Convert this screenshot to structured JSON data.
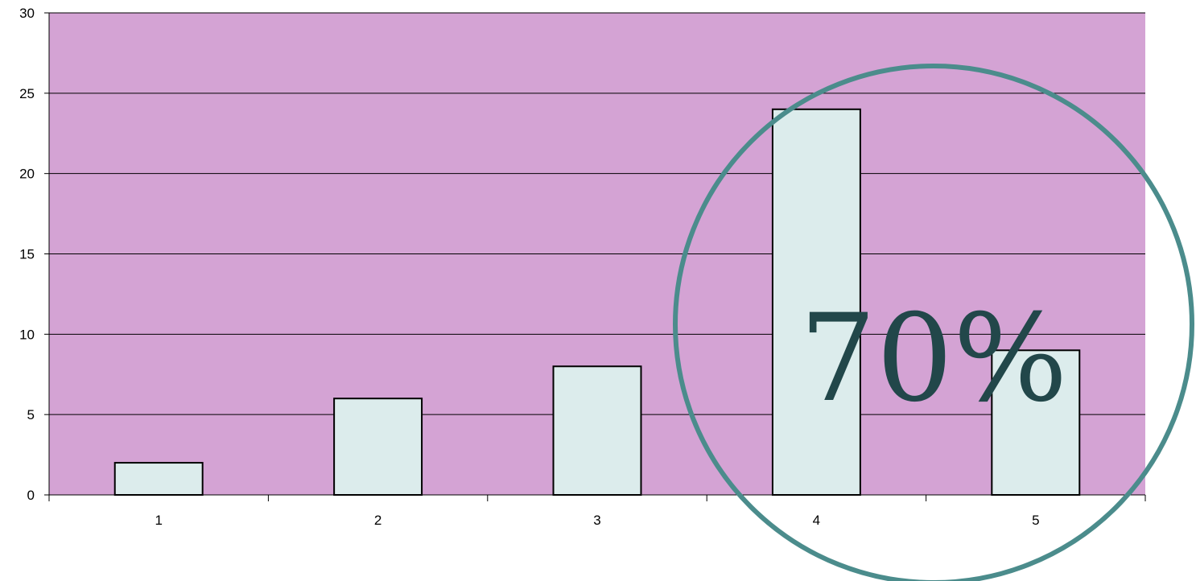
{
  "chart_data": {
    "type": "bar",
    "categories": [
      "1",
      "2",
      "3",
      "4",
      "5"
    ],
    "values": [
      2,
      6,
      8,
      24,
      9
    ],
    "ylim": [
      0,
      30
    ],
    "yticks": [
      "0",
      "5",
      "10",
      "15",
      "20",
      "25",
      "30"
    ],
    "title": "",
    "xlabel": "",
    "ylabel": "",
    "grid": true,
    "legend": "none",
    "colors": {
      "plot_background": "#d4a3d4",
      "bar_fill": "#dcecec",
      "bar_stroke": "#000000",
      "gridline": "#000000",
      "circle": "#4b8c8c",
      "overlay_text": "#22474a"
    }
  },
  "annotation": {
    "text": "70%"
  }
}
